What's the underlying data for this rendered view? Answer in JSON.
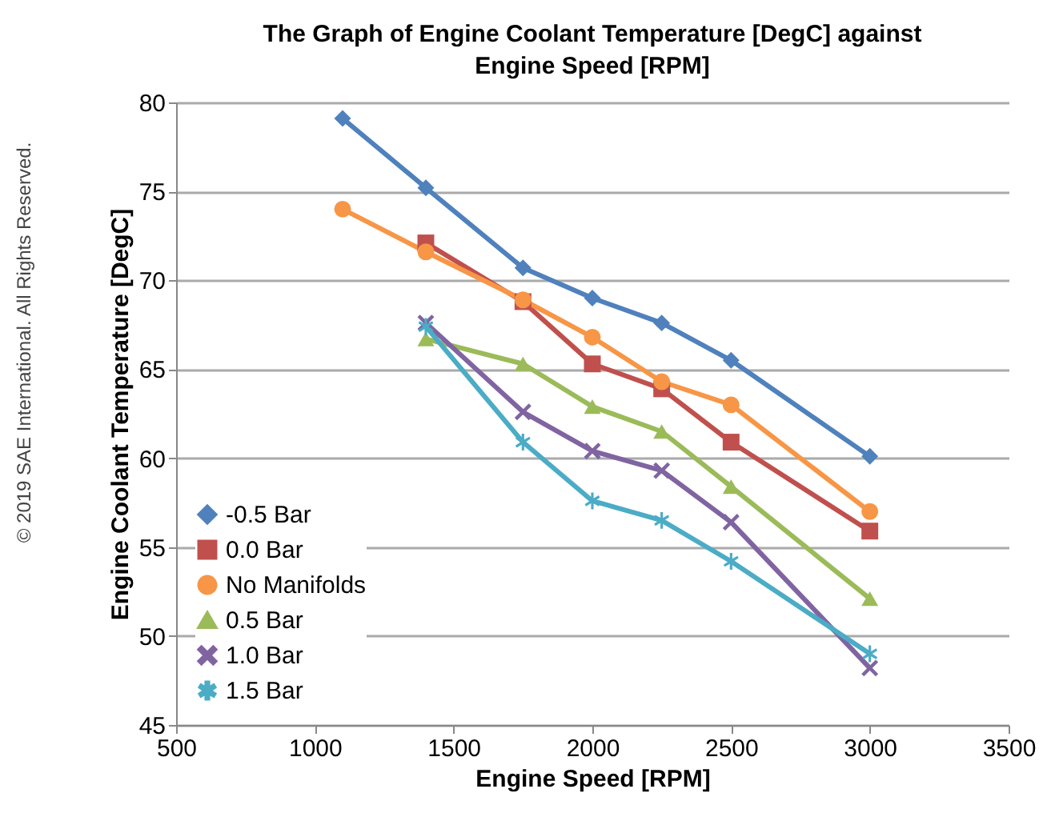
{
  "chart_data": {
    "type": "line",
    "title": "The Graph of Engine Coolant Temperature [DegC] against Engine Speed [RPM]",
    "xlabel": "Engine Speed [RPM]",
    "ylabel": "Engine Coolant Temperature [DegC]",
    "series": [
      {
        "name": "-0.5 Bar",
        "color": "#4f81bd",
        "marker": "diamond",
        "x": [
          1100,
          1400,
          1750,
          2000,
          2250,
          2500,
          3000
        ],
        "values": [
          79.1,
          75.2,
          70.7,
          69.0,
          67.6,
          65.5,
          60.1
        ]
      },
      {
        "name": "0.0 Bar",
        "color": "#c0504d",
        "marker": "square",
        "x": [
          1400,
          1750,
          2000,
          2250,
          2500,
          3000
        ],
        "values": [
          72.1,
          68.8,
          65.3,
          63.9,
          60.9,
          55.9
        ]
      },
      {
        "name": "No Manifolds",
        "color": "#f79646",
        "marker": "circle",
        "x": [
          1100,
          1400,
          1750,
          2000,
          2250,
          2500,
          3000
        ],
        "values": [
          74.0,
          71.6,
          68.9,
          66.8,
          64.3,
          63.0,
          57.0
        ]
      },
      {
        "name": "0.5 Bar",
        "color": "#9bbb59",
        "marker": "triangle",
        "x": [
          1400,
          1750,
          2000,
          2250,
          2500,
          3000
        ],
        "values": [
          66.7,
          65.3,
          62.9,
          61.5,
          58.4,
          52.1
        ]
      },
      {
        "name": "1.0 Bar",
        "color": "#8064a2",
        "marker": "cross",
        "x": [
          1400,
          1750,
          2000,
          2250,
          2500,
          3000
        ],
        "values": [
          67.6,
          62.6,
          60.4,
          59.3,
          56.4,
          48.2
        ]
      },
      {
        "name": "1.5 Bar",
        "color": "#4bacc6",
        "marker": "star",
        "x": [
          1400,
          1750,
          2000,
          2250,
          2500,
          3000
        ],
        "values": [
          67.4,
          60.9,
          57.6,
          56.5,
          54.2,
          49.0
        ]
      }
    ],
    "xlim": [
      500,
      3500
    ],
    "xticks": [
      500,
      1000,
      1500,
      2000,
      2500,
      3000,
      3500
    ],
    "ylim": [
      45,
      80
    ],
    "yticks": [
      45,
      50,
      55,
      60,
      65,
      70,
      75,
      80
    ],
    "grid": "y",
    "legend": "bottom left",
    "line_style": "solid",
    "annotations": [
      "© 2019 SAE International. All Rights Reserved."
    ]
  }
}
